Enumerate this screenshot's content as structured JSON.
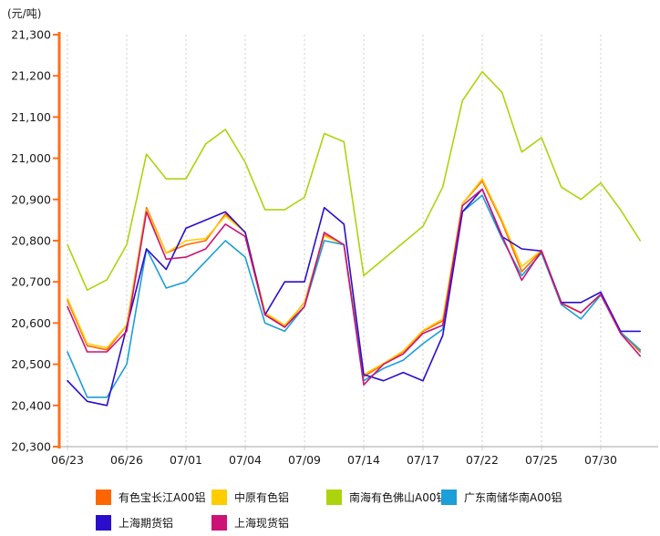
{
  "unit_label": "(元/吨)",
  "colors": {
    "axis": "#FF6F1A",
    "gridline": "#CCCCCC",
    "baseline": "#C4C4C4",
    "tick_text": "#1A1A1A"
  },
  "chart_data": {
    "type": "line",
    "title": "",
    "ylabel_unit": "(元/吨)",
    "ylim": [
      20300,
      21300
    ],
    "y_tick_step": 100,
    "grid": "vertical-dashed",
    "legend_position": "bottom",
    "x_tick_every": 3,
    "x_tick_labels": [
      "06/23",
      "06/26",
      "07/01",
      "07/04",
      "07/09",
      "07/14",
      "07/17",
      "07/22",
      "07/25",
      "07/30"
    ],
    "dates": [
      "06/23",
      "06/24",
      "06/25",
      "06/26",
      "06/27",
      "06/30",
      "07/01",
      "07/02",
      "07/03",
      "07/04",
      "07/07",
      "07/08",
      "07/09",
      "07/10",
      "07/11",
      "07/14",
      "07/15",
      "07/16",
      "07/17",
      "07/18",
      "07/21",
      "07/22",
      "07/23",
      "07/24",
      "07/25",
      "07/28",
      "07/29",
      "07/30",
      "07/31",
      "08/01"
    ],
    "series": [
      {
        "name": "有色宝长江A00铝",
        "color": "#FF6600",
        "values": [
          20655,
          20545,
          20535,
          20595,
          20880,
          20770,
          20790,
          20800,
          20865,
          20820,
          20625,
          20590,
          20650,
          20815,
          20790,
          20470,
          20500,
          20530,
          20580,
          20605,
          20890,
          20945,
          20845,
          20725,
          20775,
          20650,
          20625,
          20670,
          20578,
          20530
        ]
      },
      {
        "name": "中原有色铝",
        "color": "#FFCC00",
        "values": [
          20660,
          20550,
          20540,
          20595,
          20875,
          20770,
          20800,
          20805,
          20860,
          20820,
          20625,
          20595,
          20648,
          20812,
          20790,
          20475,
          20502,
          20532,
          20582,
          20610,
          20890,
          20950,
          20850,
          20737,
          20777,
          20650,
          20625,
          20670,
          20578,
          20535
        ]
      },
      {
        "name": "南海有色佛山A00铝",
        "color": "#ACD40E",
        "values": [
          20790,
          20680,
          20705,
          20790,
          21010,
          20950,
          20950,
          21035,
          21070,
          20990,
          20875,
          20875,
          20905,
          21060,
          21040,
          20715,
          20755,
          20795,
          20835,
          20930,
          21140,
          21210,
          21160,
          21015,
          21050,
          20930,
          20900,
          20940,
          20875,
          20800
        ]
      },
      {
        "name": "广东南储华南A00铝",
        "color": "#1C9ED9",
        "values": [
          20530,
          20420,
          20420,
          20500,
          20780,
          20685,
          20700,
          20750,
          20800,
          20760,
          20600,
          20580,
          20640,
          20800,
          20790,
          20460,
          20490,
          20510,
          20550,
          20585,
          20870,
          20910,
          20805,
          20715,
          20770,
          20645,
          20610,
          20668,
          20578,
          20535
        ]
      },
      {
        "name": "上海期货铝",
        "color": "#2A0ECC",
        "values": [
          20460,
          20410,
          20400,
          20590,
          20780,
          20730,
          20830,
          20850,
          20870,
          20820,
          20620,
          20700,
          20700,
          20880,
          20840,
          20475,
          20460,
          20480,
          20460,
          20570,
          20870,
          20925,
          20810,
          20780,
          20775,
          20650,
          20650,
          20675,
          20580,
          20580
        ]
      },
      {
        "name": "上海现货铝",
        "color": "#CC1277",
        "values": [
          20640,
          20530,
          20530,
          20580,
          20870,
          20755,
          20760,
          20780,
          20840,
          20810,
          20620,
          20590,
          20640,
          20820,
          20790,
          20450,
          20500,
          20525,
          20575,
          20595,
          20885,
          20925,
          20812,
          20704,
          20775,
          20648,
          20625,
          20670,
          20575,
          20520
        ]
      }
    ],
    "legend_rows": [
      [
        0,
        1,
        2,
        3
      ],
      [
        4,
        5
      ]
    ]
  }
}
